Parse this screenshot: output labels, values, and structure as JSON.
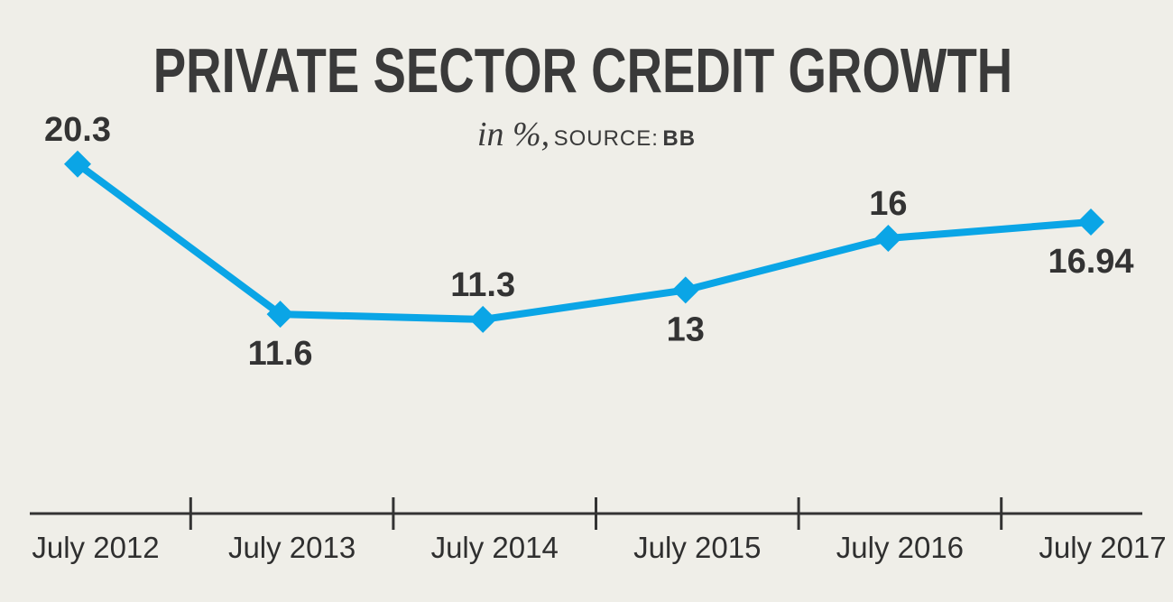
{
  "chart_data": {
    "type": "line",
    "title": "PRIVATE SECTOR CREDIT GROWTH",
    "subtitle": {
      "unit": "in %,",
      "source_prefix": "SOURCE:",
      "source_name": "BB"
    },
    "categories": [
      "July 2012",
      "July 2013",
      "July 2014",
      "July 2015",
      "July 2016",
      "July 2017"
    ],
    "series": [
      {
        "values": [
          20.3,
          11.6,
          11.3,
          13,
          16,
          16.94
        ],
        "labels": [
          "20.3",
          "11.6",
          "11.3",
          "13",
          "16",
          "16.94"
        ],
        "label_positions": [
          "above",
          "below",
          "above",
          "below",
          "above",
          "below"
        ],
        "color": "#0aa5e6",
        "marker": "diamond"
      }
    ],
    "xlabel": "",
    "ylabel": "",
    "ylim": [
      0,
      24
    ],
    "grid": false,
    "legend": "none",
    "axis_color": "#333333",
    "background": "#efeee8"
  }
}
